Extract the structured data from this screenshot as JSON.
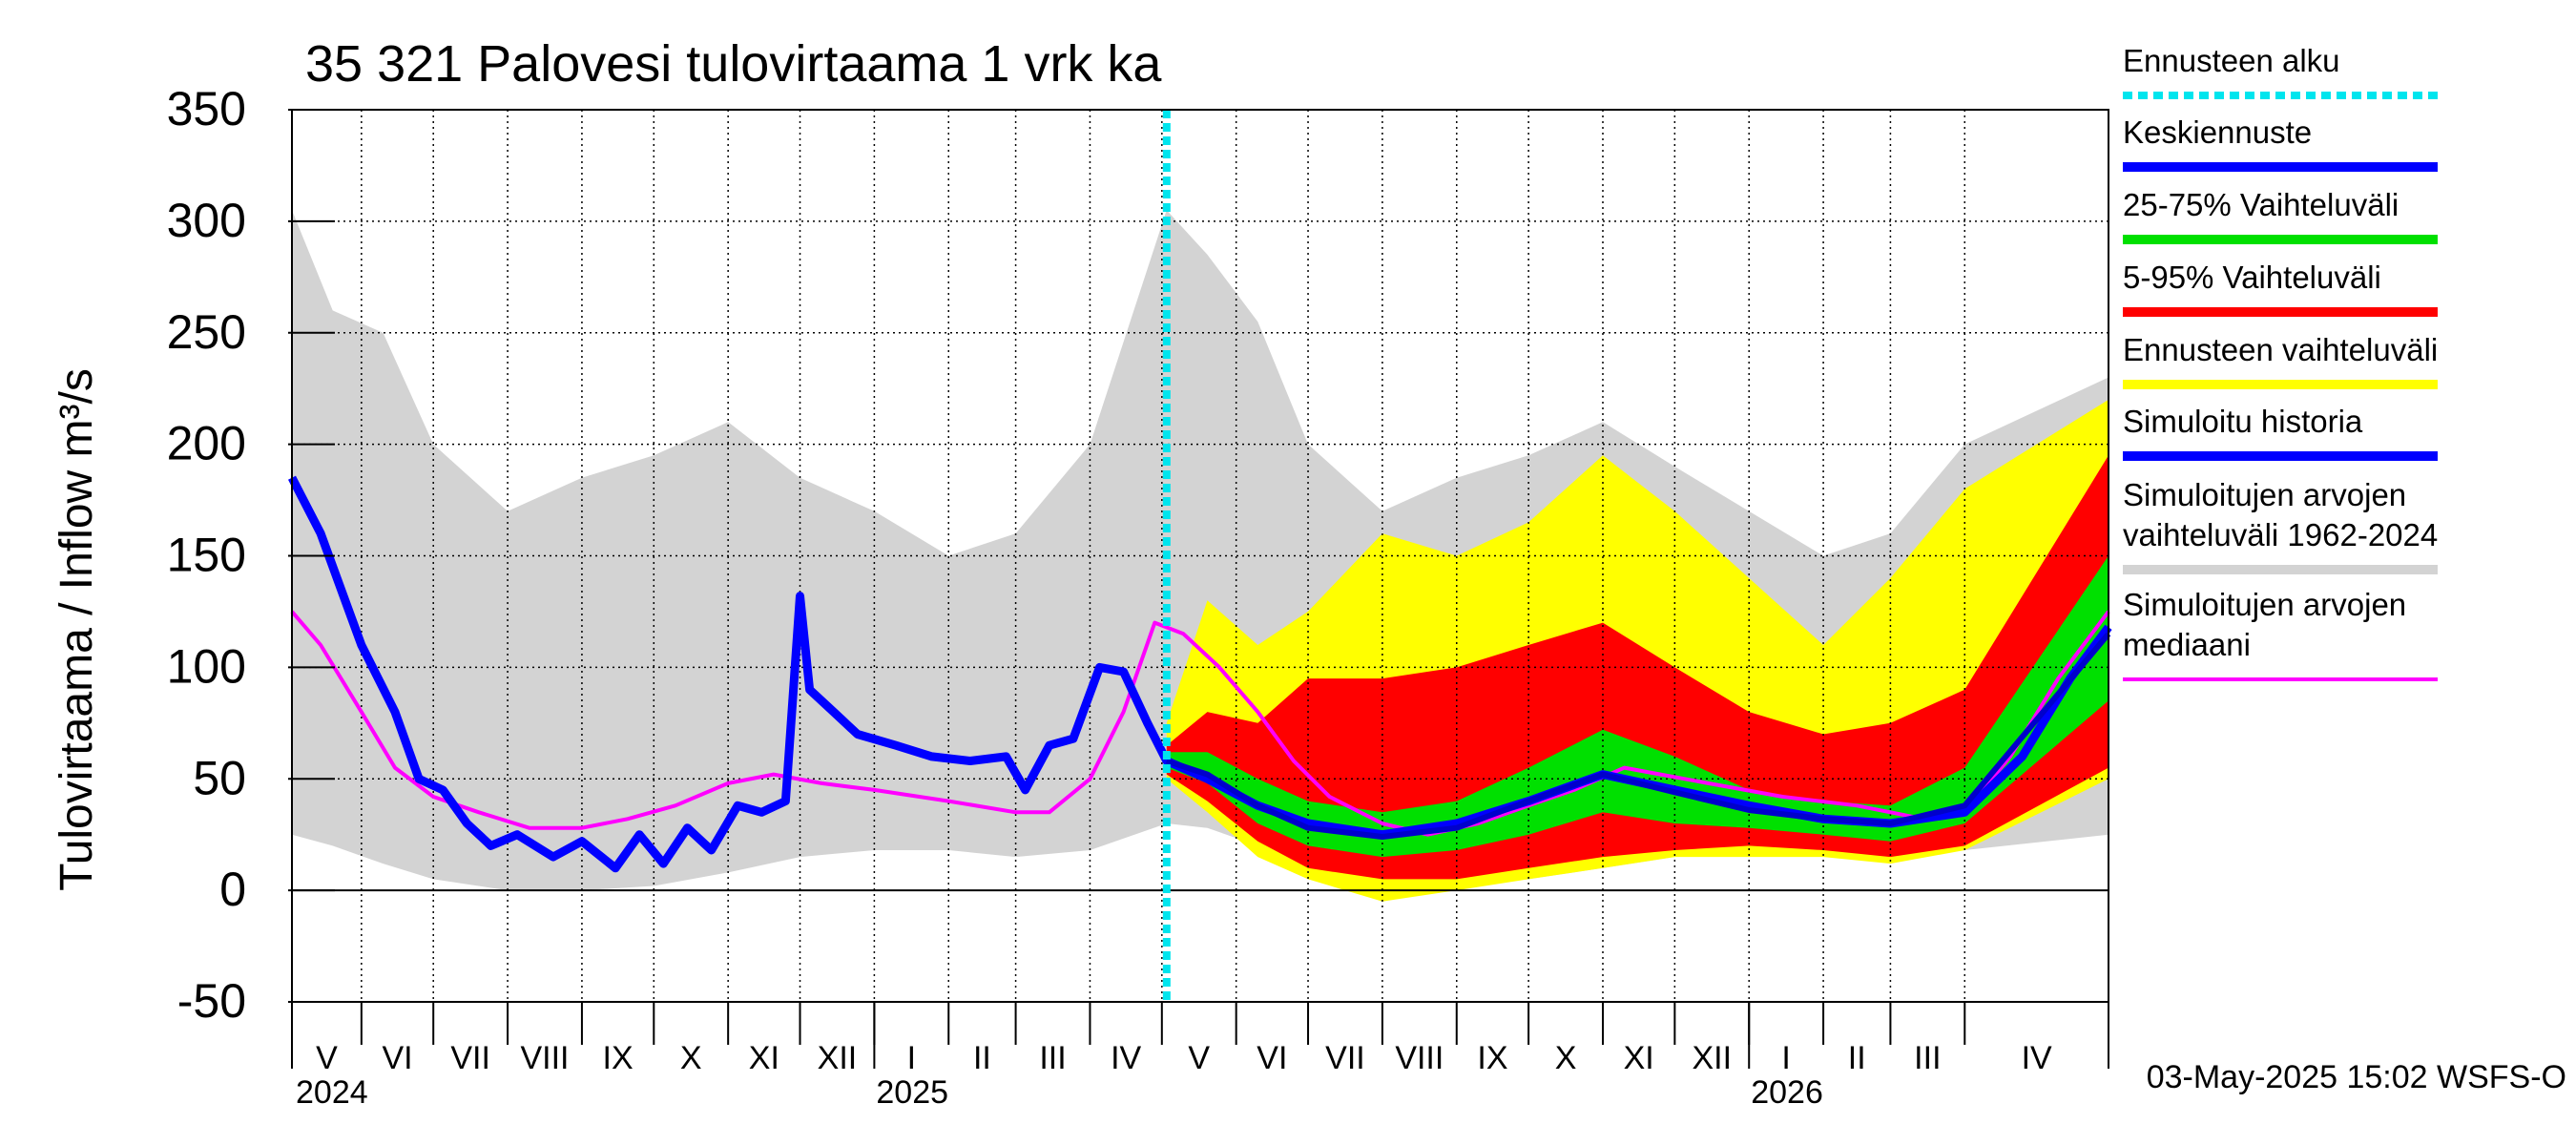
{
  "chart_data": {
    "type": "area",
    "title": "35 321 Palovesi tulovirtaama 1 vrk ka",
    "ylabel": "Tulovirtaama / Inflow    m³/s",
    "ylim": [
      -50,
      350
    ],
    "y_ticks": [
      -50,
      0,
      50,
      100,
      150,
      200,
      250,
      300,
      350
    ],
    "x_range": [
      "2024-05-03",
      "2026-05-31"
    ],
    "forecast_start": "2025-05-03",
    "month_labels": [
      {
        "label": "V",
        "date": "2024-05-01"
      },
      {
        "label": "VI",
        "date": "2024-06-01"
      },
      {
        "label": "VII",
        "date": "2024-07-01"
      },
      {
        "label": "VIII",
        "date": "2024-08-01"
      },
      {
        "label": "IX",
        "date": "2024-09-01"
      },
      {
        "label": "X",
        "date": "2024-10-01"
      },
      {
        "label": "XI",
        "date": "2024-11-01"
      },
      {
        "label": "XII",
        "date": "2024-12-01"
      },
      {
        "label": "I",
        "date": "2025-01-01"
      },
      {
        "label": "II",
        "date": "2025-02-01"
      },
      {
        "label": "III",
        "date": "2025-03-01"
      },
      {
        "label": "IV",
        "date": "2025-04-01"
      },
      {
        "label": "V",
        "date": "2025-05-01"
      },
      {
        "label": "VI",
        "date": "2025-06-01"
      },
      {
        "label": "VII",
        "date": "2025-07-01"
      },
      {
        "label": "VIII",
        "date": "2025-08-01"
      },
      {
        "label": "IX",
        "date": "2025-09-01"
      },
      {
        "label": "X",
        "date": "2025-10-01"
      },
      {
        "label": "XI",
        "date": "2025-11-01"
      },
      {
        "label": "XII",
        "date": "2025-12-01"
      },
      {
        "label": "I",
        "date": "2026-01-01"
      },
      {
        "label": "II",
        "date": "2026-02-01"
      },
      {
        "label": "III",
        "date": "2026-03-01"
      },
      {
        "label": "IV",
        "date": "2026-04-01"
      }
    ],
    "year_labels": [
      {
        "label": "2024",
        "date": "2024-05-03"
      },
      {
        "label": "2025",
        "date": "2025-01-01"
      },
      {
        "label": "2026",
        "date": "2026-01-01"
      }
    ],
    "timestamp": "03-May-2025 15:02 WSFS-O",
    "series": [
      {
        "name": "Simuloitujen arvojen vaihteluväli 1962-2024",
        "color": "#d3d3d3",
        "kind": "band",
        "points": [
          [
            "2024-05-03",
            25,
            305
          ],
          [
            "2024-05-20",
            20,
            260
          ],
          [
            "2024-06-10",
            12,
            250
          ],
          [
            "2024-07-01",
            5,
            200
          ],
          [
            "2024-08-01",
            0,
            170
          ],
          [
            "2024-09-01",
            0,
            185
          ],
          [
            "2024-10-01",
            2,
            195
          ],
          [
            "2024-11-01",
            8,
            210
          ],
          [
            "2024-12-01",
            15,
            185
          ],
          [
            "2025-01-01",
            18,
            170
          ],
          [
            "2025-02-01",
            18,
            150
          ],
          [
            "2025-03-01",
            15,
            160
          ],
          [
            "2025-04-01",
            18,
            200
          ],
          [
            "2025-05-03",
            30,
            305
          ],
          [
            "2025-05-20",
            28,
            285
          ],
          [
            "2025-06-10",
            20,
            255
          ],
          [
            "2025-07-01",
            5,
            200
          ],
          [
            "2025-08-01",
            0,
            170
          ],
          [
            "2025-09-01",
            2,
            185
          ],
          [
            "2025-10-01",
            5,
            195
          ],
          [
            "2025-11-01",
            10,
            210
          ],
          [
            "2025-12-01",
            15,
            190
          ],
          [
            "2026-01-01",
            18,
            170
          ],
          [
            "2026-02-01",
            18,
            150
          ],
          [
            "2026-03-01",
            15,
            160
          ],
          [
            "2026-04-01",
            18,
            200
          ],
          [
            "2026-05-31",
            25,
            230
          ]
        ]
      },
      {
        "name": "Ennusteen vaihteluväli",
        "color": "#ffff00",
        "kind": "band",
        "points": [
          [
            "2025-05-03",
            50,
            75
          ],
          [
            "2025-05-20",
            35,
            130
          ],
          [
            "2025-06-10",
            15,
            110
          ],
          [
            "2025-07-01",
            5,
            125
          ],
          [
            "2025-08-01",
            -5,
            160
          ],
          [
            "2025-09-01",
            0,
            150
          ],
          [
            "2025-10-01",
            5,
            165
          ],
          [
            "2025-11-01",
            10,
            195
          ],
          [
            "2025-12-01",
            15,
            170
          ],
          [
            "2026-01-01",
            15,
            140
          ],
          [
            "2026-02-01",
            15,
            110
          ],
          [
            "2026-03-01",
            12,
            140
          ],
          [
            "2026-04-01",
            18,
            180
          ],
          [
            "2026-05-31",
            50,
            220
          ]
        ]
      },
      {
        "name": "5-95% Vaihteluväli",
        "color": "#ff0000",
        "kind": "band",
        "points": [
          [
            "2025-05-03",
            52,
            65
          ],
          [
            "2025-05-20",
            40,
            80
          ],
          [
            "2025-06-10",
            22,
            75
          ],
          [
            "2025-07-01",
            10,
            95
          ],
          [
            "2025-08-01",
            5,
            95
          ],
          [
            "2025-09-01",
            5,
            100
          ],
          [
            "2025-10-01",
            10,
            110
          ],
          [
            "2025-11-01",
            15,
            120
          ],
          [
            "2025-12-01",
            18,
            100
          ],
          [
            "2026-01-01",
            20,
            80
          ],
          [
            "2026-02-01",
            18,
            70
          ],
          [
            "2026-03-01",
            15,
            75
          ],
          [
            "2026-04-01",
            20,
            90
          ],
          [
            "2026-05-31",
            55,
            195
          ]
        ]
      },
      {
        "name": "25-75% Vaihteluväli",
        "color": "#00e000",
        "kind": "band",
        "points": [
          [
            "2025-05-03",
            55,
            62
          ],
          [
            "2025-05-20",
            48,
            62
          ],
          [
            "2025-06-10",
            30,
            50
          ],
          [
            "2025-07-01",
            20,
            40
          ],
          [
            "2025-08-01",
            15,
            35
          ],
          [
            "2025-09-01",
            18,
            40
          ],
          [
            "2025-10-01",
            25,
            55
          ],
          [
            "2025-11-01",
            35,
            72
          ],
          [
            "2025-12-01",
            30,
            60
          ],
          [
            "2026-01-01",
            28,
            45
          ],
          [
            "2026-02-01",
            25,
            40
          ],
          [
            "2026-03-01",
            22,
            38
          ],
          [
            "2026-04-01",
            30,
            55
          ],
          [
            "2026-05-31",
            85,
            150
          ]
        ]
      },
      {
        "name": "Simuloitujen arvojen mediaani",
        "color": "#ff00ff",
        "kind": "line",
        "points": [
          [
            "2024-05-03",
            125
          ],
          [
            "2024-05-15",
            110
          ],
          [
            "2024-06-01",
            80
          ],
          [
            "2024-06-15",
            55
          ],
          [
            "2024-07-01",
            42
          ],
          [
            "2024-07-20",
            35
          ],
          [
            "2024-08-10",
            28
          ],
          [
            "2024-09-01",
            28
          ],
          [
            "2024-09-20",
            32
          ],
          [
            "2024-10-10",
            38
          ],
          [
            "2024-11-01",
            48
          ],
          [
            "2024-11-20",
            52
          ],
          [
            "2024-12-10",
            48
          ],
          [
            "2025-01-01",
            45
          ],
          [
            "2025-02-01",
            40
          ],
          [
            "2025-03-01",
            35
          ],
          [
            "2025-03-15",
            35
          ],
          [
            "2025-04-01",
            50
          ],
          [
            "2025-04-15",
            80
          ],
          [
            "2025-04-28",
            120
          ],
          [
            "2025-05-10",
            115
          ],
          [
            "2025-05-25",
            100
          ],
          [
            "2025-06-10",
            80
          ],
          [
            "2025-06-25",
            58
          ],
          [
            "2025-07-10",
            42
          ],
          [
            "2025-08-01",
            30
          ],
          [
            "2025-08-20",
            25
          ],
          [
            "2025-09-10",
            30
          ],
          [
            "2025-10-01",
            38
          ],
          [
            "2025-10-20",
            45
          ],
          [
            "2025-11-10",
            55
          ],
          [
            "2025-11-25",
            52
          ],
          [
            "2025-12-15",
            48
          ],
          [
            "2026-01-15",
            42
          ],
          [
            "2026-02-15",
            38
          ],
          [
            "2026-03-15",
            32
          ],
          [
            "2026-04-01",
            35
          ],
          [
            "2026-04-20",
            60
          ],
          [
            "2026-05-10",
            95
          ],
          [
            "2026-05-31",
            125
          ]
        ]
      },
      {
        "name": "Simuloitu historia",
        "color": "#0000ff",
        "kind": "line",
        "points": [
          [
            "2024-05-03",
            185
          ],
          [
            "2024-05-15",
            160
          ],
          [
            "2024-06-01",
            110
          ],
          [
            "2024-06-15",
            80
          ],
          [
            "2024-06-25",
            50
          ],
          [
            "2024-07-05",
            45
          ],
          [
            "2024-07-15",
            30
          ],
          [
            "2024-07-25",
            20
          ],
          [
            "2024-08-05",
            25
          ],
          [
            "2024-08-20",
            15
          ],
          [
            "2024-09-01",
            22
          ],
          [
            "2024-09-15",
            10
          ],
          [
            "2024-09-25",
            25
          ],
          [
            "2024-10-05",
            12
          ],
          [
            "2024-10-15",
            28
          ],
          [
            "2024-10-25",
            18
          ],
          [
            "2024-11-05",
            38
          ],
          [
            "2024-11-15",
            35
          ],
          [
            "2024-11-25",
            40
          ],
          [
            "2024-12-01",
            132
          ],
          [
            "2024-12-05",
            90
          ],
          [
            "2024-12-15",
            80
          ],
          [
            "2024-12-25",
            70
          ],
          [
            "2025-01-10",
            65
          ],
          [
            "2025-01-25",
            60
          ],
          [
            "2025-02-10",
            58
          ],
          [
            "2025-02-25",
            60
          ],
          [
            "2025-03-05",
            45
          ],
          [
            "2025-03-15",
            65
          ],
          [
            "2025-03-25",
            68
          ],
          [
            "2025-04-05",
            100
          ],
          [
            "2025-04-15",
            98
          ],
          [
            "2025-04-25",
            75
          ],
          [
            "2025-05-03",
            58
          ],
          [
            "2025-05-20",
            50
          ],
          [
            "2025-06-10",
            38
          ],
          [
            "2025-07-01",
            30
          ],
          [
            "2025-08-01",
            25
          ],
          [
            "2025-09-01",
            30
          ],
          [
            "2025-10-01",
            40
          ],
          [
            "2025-11-01",
            52
          ],
          [
            "2025-12-01",
            45
          ],
          [
            "2026-01-01",
            38
          ],
          [
            "2026-02-01",
            32
          ],
          [
            "2026-03-01",
            30
          ],
          [
            "2026-04-01",
            35
          ],
          [
            "2026-04-25",
            60
          ],
          [
            "2026-05-15",
            95
          ],
          [
            "2026-05-31",
            118
          ]
        ]
      },
      {
        "name": "Keskiennuste",
        "color": "#0000cc",
        "kind": "line",
        "points": [
          [
            "2025-05-03",
            58
          ],
          [
            "2025-05-20",
            52
          ],
          [
            "2025-06-10",
            38
          ],
          [
            "2025-07-01",
            28
          ],
          [
            "2025-08-01",
            24
          ],
          [
            "2025-09-01",
            28
          ],
          [
            "2025-10-01",
            40
          ],
          [
            "2025-11-01",
            52
          ],
          [
            "2025-12-01",
            44
          ],
          [
            "2026-01-01",
            36
          ],
          [
            "2026-02-01",
            32
          ],
          [
            "2026-03-01",
            30
          ],
          [
            "2026-04-01",
            38
          ],
          [
            "2026-05-31",
            115
          ]
        ]
      }
    ],
    "legend": [
      {
        "label": "Ennusteen alku",
        "color": "#00e5ee",
        "style": "dotted"
      },
      {
        "label": "Keskiennuste",
        "color": "#0000ff",
        "style": "solid"
      },
      {
        "label": "25-75% Vaihteluväli",
        "color": "#00e000",
        "style": "solid"
      },
      {
        "label": "5-95% Vaihteluväli",
        "color": "#ff0000",
        "style": "solid"
      },
      {
        "label": "Ennusteen vaihteluväli",
        "color": "#ffff00",
        "style": "solid"
      },
      {
        "label": "Simuloitu historia",
        "color": "#0000ff",
        "style": "solid"
      },
      {
        "label": "Simuloitujen arvojen vaihteluväli 1962-2024",
        "color": "#d3d3d3",
        "style": "solid"
      },
      {
        "label": "Simuloitujen arvojen mediaani",
        "color": "#ff00ff",
        "style": "solid"
      }
    ]
  }
}
